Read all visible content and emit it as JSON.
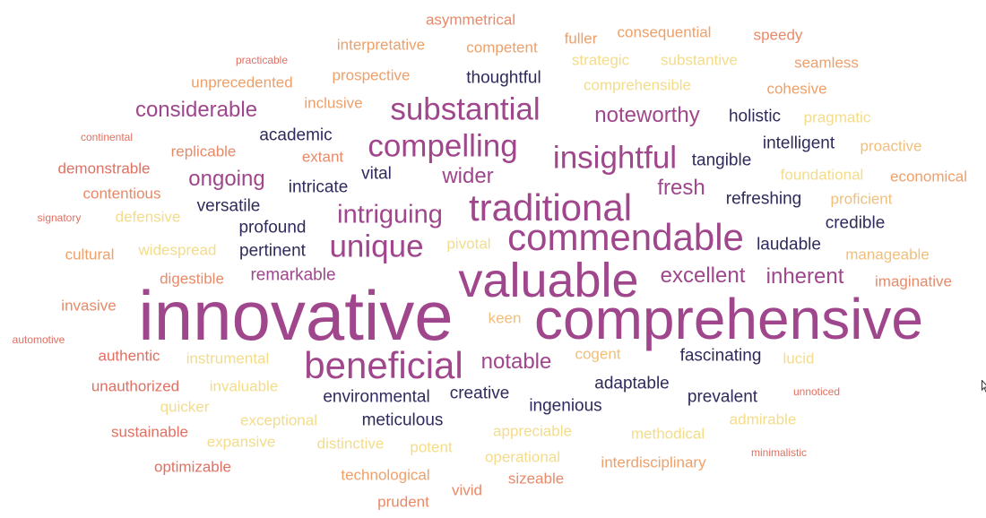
{
  "palette": {
    "magenta": "#9b3c83",
    "plum": "#a0468c",
    "navy": "#2e2a5c",
    "indigo": "#3d356e",
    "coral": "#e07062",
    "salmon": "#e88a68",
    "orange": "#eea06a",
    "sand": "#f1bf7b",
    "pale": "#f3dc8a"
  },
  "cloud": {
    "words": [
      {
        "text": "innovative",
        "weight": 10,
        "color": "plum"
      },
      {
        "text": "comprehensive",
        "weight": 9,
        "color": "plum"
      },
      {
        "text": "valuable",
        "weight": 8,
        "color": "plum"
      },
      {
        "text": "commendable",
        "weight": 6,
        "color": "plum"
      },
      {
        "text": "beneficial",
        "weight": 6,
        "color": "plum"
      },
      {
        "text": "traditional",
        "weight": 6,
        "color": "plum"
      },
      {
        "text": "substantial",
        "weight": 5,
        "color": "plum"
      },
      {
        "text": "compelling",
        "weight": 5,
        "color": "plum"
      },
      {
        "text": "insightful",
        "weight": 5,
        "color": "plum"
      },
      {
        "text": "unique",
        "weight": 5,
        "color": "plum"
      },
      {
        "text": "intriguing",
        "weight": 4,
        "color": "plum"
      },
      {
        "text": "noteworthy",
        "weight": 3,
        "color": "plum"
      },
      {
        "text": "wider",
        "weight": 3,
        "color": "plum"
      },
      {
        "text": "fresh",
        "weight": 3,
        "color": "plum"
      },
      {
        "text": "notable",
        "weight": 3,
        "color": "plum"
      },
      {
        "text": "excellent",
        "weight": 3,
        "color": "plum"
      },
      {
        "text": "inherent",
        "weight": 3,
        "color": "plum"
      },
      {
        "text": "considerable",
        "weight": 3,
        "color": "plum"
      },
      {
        "text": "ongoing",
        "weight": 3,
        "color": "plum"
      },
      {
        "text": "remarkable",
        "weight": 2,
        "color": "plum"
      },
      {
        "text": "thoughtful",
        "weight": 2,
        "color": "navy"
      },
      {
        "text": "holistic",
        "weight": 2,
        "color": "navy"
      },
      {
        "text": "academic",
        "weight": 2,
        "color": "navy"
      },
      {
        "text": "intelligent",
        "weight": 2,
        "color": "navy"
      },
      {
        "text": "tangible",
        "weight": 2,
        "color": "navy"
      },
      {
        "text": "vital",
        "weight": 2,
        "color": "navy"
      },
      {
        "text": "intricate",
        "weight": 2,
        "color": "navy"
      },
      {
        "text": "versatile",
        "weight": 2,
        "color": "navy"
      },
      {
        "text": "refreshing",
        "weight": 2,
        "color": "navy"
      },
      {
        "text": "credible",
        "weight": 2,
        "color": "navy"
      },
      {
        "text": "profound",
        "weight": 2,
        "color": "navy"
      },
      {
        "text": "pertinent",
        "weight": 2,
        "color": "navy"
      },
      {
        "text": "laudable",
        "weight": 2,
        "color": "navy"
      },
      {
        "text": "fascinating",
        "weight": 2,
        "color": "navy"
      },
      {
        "text": "adaptable",
        "weight": 2,
        "color": "navy"
      },
      {
        "text": "prevalent",
        "weight": 2,
        "color": "navy"
      },
      {
        "text": "environmental",
        "weight": 2,
        "color": "navy"
      },
      {
        "text": "creative",
        "weight": 2,
        "color": "navy"
      },
      {
        "text": "ingenious",
        "weight": 2,
        "color": "navy"
      },
      {
        "text": "meticulous",
        "weight": 2,
        "color": "navy"
      },
      {
        "text": "asymmetrical",
        "weight": 1,
        "color": "salmon"
      },
      {
        "text": "interpretative",
        "weight": 1,
        "color": "orange"
      },
      {
        "text": "competent",
        "weight": 1,
        "color": "orange"
      },
      {
        "text": "fuller",
        "weight": 1,
        "color": "orange"
      },
      {
        "text": "consequential",
        "weight": 1,
        "color": "orange"
      },
      {
        "text": "speedy",
        "weight": 1,
        "color": "salmon"
      },
      {
        "text": "practicable",
        "weight": 0,
        "color": "coral"
      },
      {
        "text": "prospective",
        "weight": 1,
        "color": "orange"
      },
      {
        "text": "strategic",
        "weight": 1,
        "color": "pale"
      },
      {
        "text": "substantive",
        "weight": 1,
        "color": "pale"
      },
      {
        "text": "seamless",
        "weight": 1,
        "color": "orange"
      },
      {
        "text": "unprecedented",
        "weight": 1,
        "color": "orange"
      },
      {
        "text": "comprehensible",
        "weight": 1,
        "color": "pale"
      },
      {
        "text": "cohesive",
        "weight": 1,
        "color": "orange"
      },
      {
        "text": "inclusive",
        "weight": 1,
        "color": "orange"
      },
      {
        "text": "pragmatic",
        "weight": 1,
        "color": "pale"
      },
      {
        "text": "continental",
        "weight": 0,
        "color": "coral"
      },
      {
        "text": "replicable",
        "weight": 1,
        "color": "salmon"
      },
      {
        "text": "extant",
        "weight": 1,
        "color": "salmon"
      },
      {
        "text": "proactive",
        "weight": 1,
        "color": "sand"
      },
      {
        "text": "demonstrable",
        "weight": 1,
        "color": "coral"
      },
      {
        "text": "foundational",
        "weight": 1,
        "color": "pale"
      },
      {
        "text": "economical",
        "weight": 1,
        "color": "orange"
      },
      {
        "text": "contentious",
        "weight": 1,
        "color": "salmon"
      },
      {
        "text": "proficient",
        "weight": 1,
        "color": "sand"
      },
      {
        "text": "signatory",
        "weight": 0,
        "color": "coral"
      },
      {
        "text": "defensive",
        "weight": 1,
        "color": "pale"
      },
      {
        "text": "cultural",
        "weight": 1,
        "color": "orange"
      },
      {
        "text": "widespread",
        "weight": 1,
        "color": "pale"
      },
      {
        "text": "pivotal",
        "weight": 1,
        "color": "pale"
      },
      {
        "text": "manageable",
        "weight": 1,
        "color": "sand"
      },
      {
        "text": "digestible",
        "weight": 1,
        "color": "salmon"
      },
      {
        "text": "imaginative",
        "weight": 1,
        "color": "salmon"
      },
      {
        "text": "invasive",
        "weight": 1,
        "color": "salmon"
      },
      {
        "text": "keen",
        "weight": 1,
        "color": "sand"
      },
      {
        "text": "automotive",
        "weight": 0,
        "color": "coral"
      },
      {
        "text": "authentic",
        "weight": 1,
        "color": "coral"
      },
      {
        "text": "instrumental",
        "weight": 1,
        "color": "pale"
      },
      {
        "text": "cogent",
        "weight": 1,
        "color": "sand"
      },
      {
        "text": "lucid",
        "weight": 1,
        "color": "pale"
      },
      {
        "text": "unauthorized",
        "weight": 1,
        "color": "coral"
      },
      {
        "text": "invaluable",
        "weight": 1,
        "color": "pale"
      },
      {
        "text": "unnoticed",
        "weight": 0,
        "color": "coral"
      },
      {
        "text": "quicker",
        "weight": 1,
        "color": "pale"
      },
      {
        "text": "exceptional",
        "weight": 1,
        "color": "pale"
      },
      {
        "text": "admirable",
        "weight": 1,
        "color": "pale"
      },
      {
        "text": "sustainable",
        "weight": 1,
        "color": "coral"
      },
      {
        "text": "expansive",
        "weight": 1,
        "color": "pale"
      },
      {
        "text": "distinctive",
        "weight": 1,
        "color": "pale"
      },
      {
        "text": "potent",
        "weight": 1,
        "color": "pale"
      },
      {
        "text": "appreciable",
        "weight": 1,
        "color": "pale"
      },
      {
        "text": "methodical",
        "weight": 1,
        "color": "pale"
      },
      {
        "text": "minimalistic",
        "weight": 0,
        "color": "coral"
      },
      {
        "text": "optimizable",
        "weight": 1,
        "color": "coral"
      },
      {
        "text": "operational",
        "weight": 1,
        "color": "pale"
      },
      {
        "text": "interdisciplinary",
        "weight": 1,
        "color": "orange"
      },
      {
        "text": "technological",
        "weight": 1,
        "color": "orange"
      },
      {
        "text": "sizeable",
        "weight": 1,
        "color": "salmon"
      },
      {
        "text": "vivid",
        "weight": 1,
        "color": "salmon"
      },
      {
        "text": "prudent",
        "weight": 1,
        "color": "salmon"
      }
    ]
  }
}
